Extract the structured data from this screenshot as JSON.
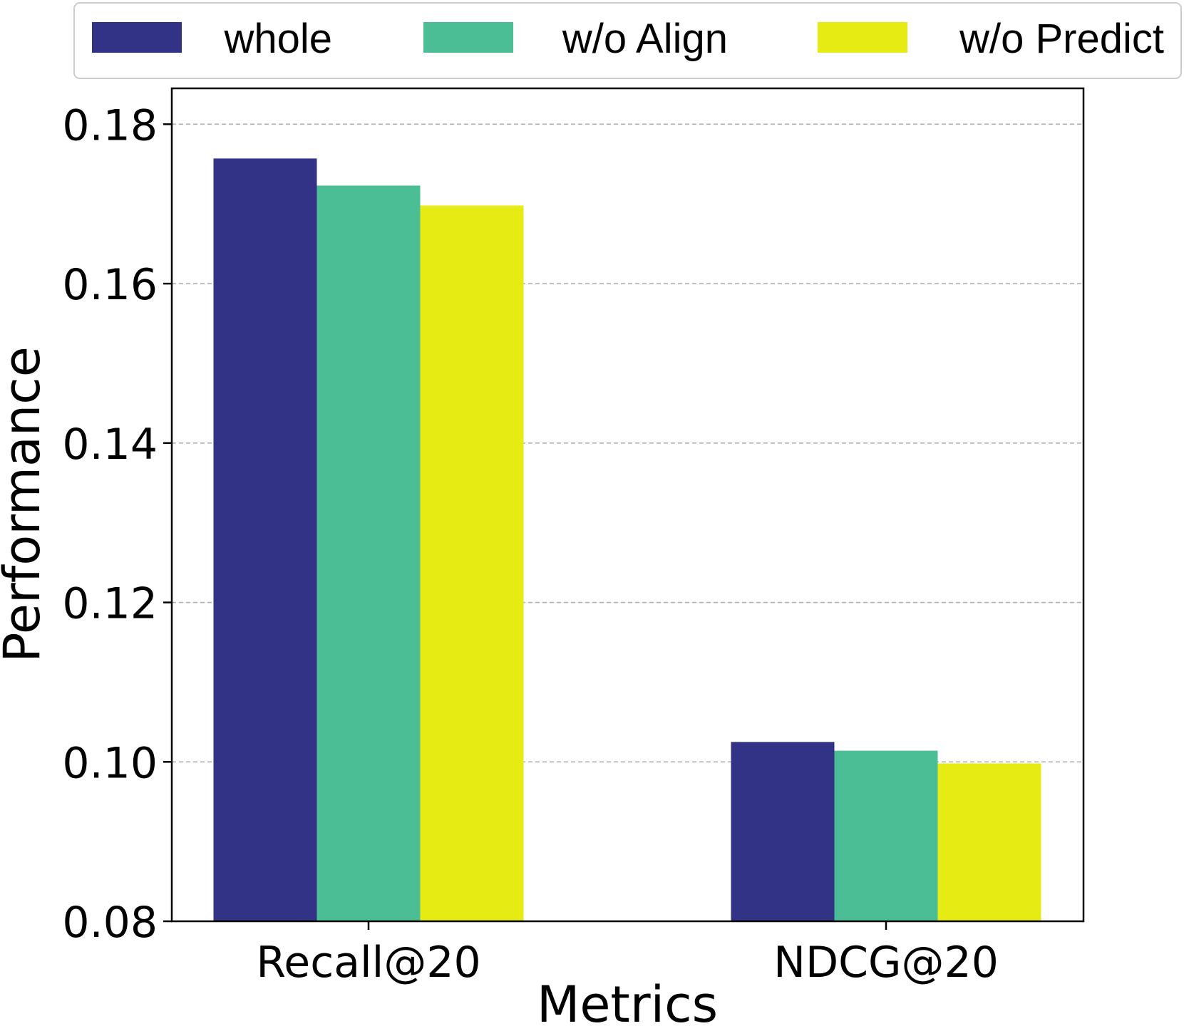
{
  "chart_data": {
    "type": "bar",
    "title": "",
    "xlabel": "Metrics",
    "ylabel": "Performance",
    "categories": [
      "Recall@20",
      "NDCG@20"
    ],
    "series": [
      {
        "name": "whole",
        "color": "#323286",
        "values": [
          0.1757,
          0.1025
        ]
      },
      {
        "name": "w/o Align",
        "color": "#4bbe96",
        "values": [
          0.1723,
          0.1014
        ]
      },
      {
        "name": "w/o Predict",
        "color": "#e6eb14",
        "values": [
          0.1698,
          0.0998
        ]
      }
    ],
    "ylim": [
      0.08,
      0.1845
    ],
    "yticks": [
      0.08,
      0.1,
      0.12,
      0.14,
      0.16,
      0.18
    ],
    "ytick_labels": [
      "0.08",
      "0.10",
      "0.12",
      "0.14",
      "0.16",
      "0.18"
    ],
    "grid": "y-dashed",
    "legend_position": "top"
  }
}
